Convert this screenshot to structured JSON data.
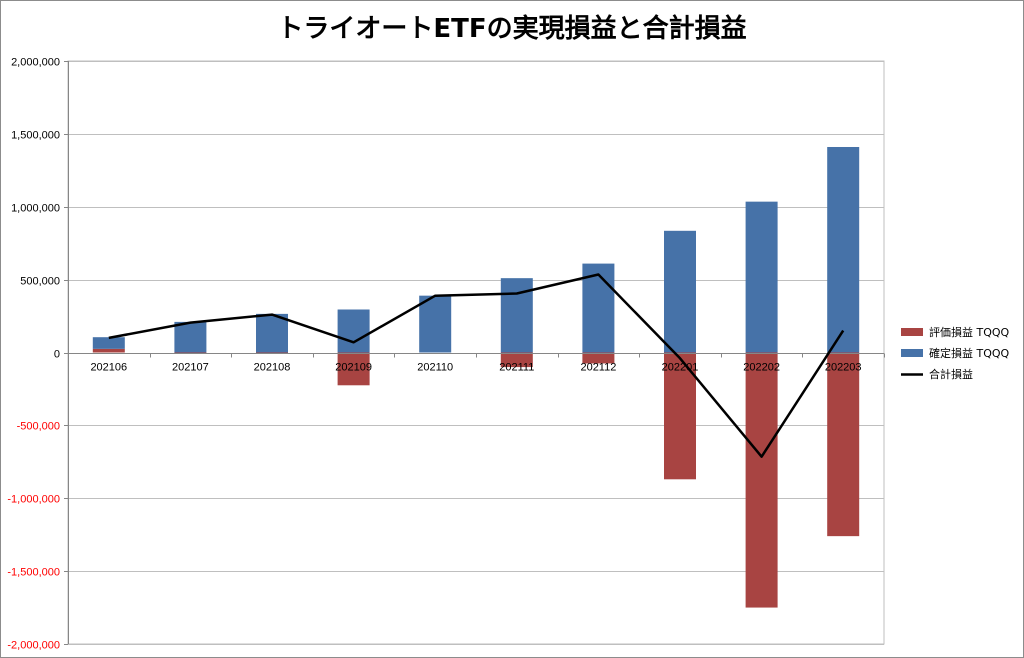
{
  "chart_data": {
    "type": "bar",
    "title": "トライオートETFの実現損益と合計損益",
    "categories": [
      "202106",
      "202107",
      "202108",
      "202109",
      "202110",
      "202111",
      "202112",
      "202201",
      "202202",
      "202203"
    ],
    "series": [
      {
        "name": "評価損益 TQQQ",
        "kind": "bar",
        "color": "#a84442",
        "values": [
          25000,
          -10000,
          -5000,
          -225000,
          0,
          -100000,
          -75000,
          -870000,
          -1750000,
          -1260000
        ]
      },
      {
        "name": "確定損益 TQQQ",
        "kind": "bar",
        "color": "#4672a8",
        "values": [
          80000,
          210000,
          265000,
          295000,
          390000,
          510000,
          610000,
          835000,
          1035000,
          1410000
        ]
      },
      {
        "name": "合計損益",
        "kind": "line",
        "color": "#000000",
        "values": [
          100000,
          205000,
          260000,
          70000,
          390000,
          405000,
          535000,
          -40000,
          -715000,
          150000
        ]
      }
    ],
    "ylim": [
      -2000000,
      2000000
    ],
    "yticks": [
      "2,000,000",
      "1,500,000",
      "1,000,000",
      "500,000",
      "0",
      "-500,000",
      "-1,000,000",
      "-1,500,000",
      "-2,000,000"
    ],
    "ytick_values": [
      2000000,
      1500000,
      1000000,
      500000,
      0,
      -500000,
      -1000000,
      -1500000,
      -2000000
    ],
    "negative_tick_color": "#ff0000",
    "grid": true,
    "legend_position": "right"
  }
}
